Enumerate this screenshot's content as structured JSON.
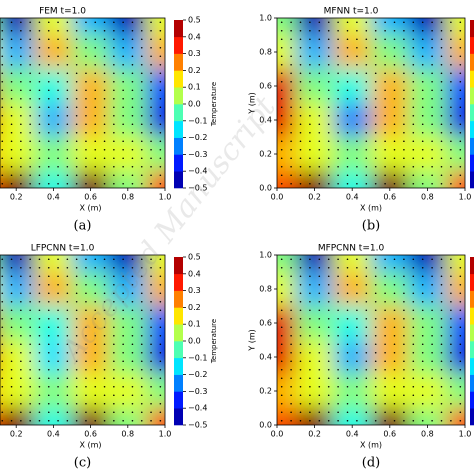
{
  "watermark": "Accepted Manuscript",
  "chart_data": [
    {
      "type": "contour",
      "title": "FEM   t=1.0",
      "caption": "(a)",
      "xlabel": "X (m)",
      "colorbar_label": "Temperature",
      "xlim": [
        0,
        1
      ],
      "ylim": [
        0,
        1
      ],
      "clim": [
        -0.5,
        0.5
      ],
      "colormap": "jet",
      "xticks": [
        0.2,
        0.4,
        0.6,
        0.8,
        {
          "value": 1,
          "label": "1.0"
        }
      ],
      "cbticks": [
        0.5,
        0.4,
        0.3,
        0.2,
        0.1,
        {
          "value": 0,
          "label": "0.0"
        },
        {
          "value": -0.1,
          "label": "−0.1"
        },
        {
          "value": -0.2,
          "label": "−0.2"
        },
        {
          "value": -0.3,
          "label": "−0.3"
        },
        {
          "value": -0.4,
          "label": "−0.4"
        },
        {
          "value": -0.5,
          "label": "−0.5"
        }
      ],
      "x": [
        0,
        0.2,
        0.4,
        0.6,
        0.8,
        1
      ],
      "y": [
        0,
        0.2,
        0.4,
        0.6,
        0.8,
        1
      ],
      "z": [
        [
          0.3,
          0.5,
          -0.1,
          0.5,
          0.0,
          0.3
        ],
        [
          0.2,
          0.1,
          0.0,
          0.1,
          0.1,
          0.0
        ],
        [
          0.4,
          0.1,
          -0.2,
          0.2,
          0.0,
          -0.4
        ],
        [
          0.4,
          0.0,
          -0.1,
          0.2,
          0.0,
          -0.3
        ],
        [
          0.1,
          -0.2,
          0.2,
          0.0,
          -0.2,
          0.2
        ],
        [
          0.0,
          -0.45,
          0.1,
          -0.2,
          -0.45,
          0.1
        ]
      ]
    },
    {
      "type": "contour",
      "title": "MFNN   t=1.0",
      "caption": "(b)",
      "xlabel": "X (m)",
      "ylabel": "Y (m)",
      "xlim": [
        0,
        1
      ],
      "ylim": [
        0,
        1
      ],
      "clim": [
        -0.5,
        0.5
      ],
      "colormap": "jet",
      "xticks": [
        {
          "value": 0,
          "label": "0.0"
        },
        0.2,
        0.4,
        0.6,
        0.8,
        {
          "value": 1,
          "label": "1.0"
        }
      ],
      "yticks": [
        {
          "value": 0,
          "label": "0.0"
        },
        0.2,
        0.4,
        0.6,
        0.8,
        {
          "value": 1,
          "label": "1.0"
        }
      ],
      "x": [
        0,
        0.2,
        0.4,
        0.6,
        0.8,
        1
      ],
      "y": [
        0,
        0.2,
        0.4,
        0.6,
        0.8,
        1
      ],
      "z": [
        [
          0.3,
          0.5,
          -0.1,
          0.5,
          0.0,
          0.3
        ],
        [
          0.2,
          0.1,
          0.0,
          0.1,
          0.1,
          0.0
        ],
        [
          0.4,
          0.1,
          -0.25,
          0.2,
          0.0,
          -0.4
        ],
        [
          0.4,
          0.0,
          -0.1,
          0.2,
          0.0,
          -0.3
        ],
        [
          0.1,
          -0.2,
          0.2,
          0.0,
          -0.2,
          0.2
        ],
        [
          0.0,
          -0.45,
          0.1,
          -0.2,
          -0.45,
          0.1
        ]
      ]
    },
    {
      "type": "contour",
      "title": "LFPCNN   t=1.0",
      "caption": "(c)",
      "xlabel": "X (m)",
      "colorbar_label": "Temperature",
      "xlim": [
        0,
        1
      ],
      "ylim": [
        0,
        1
      ],
      "clim": [
        -0.5,
        0.5
      ],
      "colormap": "jet",
      "xticks": [
        0.2,
        0.4,
        0.6,
        0.8,
        {
          "value": 1,
          "label": "1.0"
        }
      ],
      "cbticks": [
        0.5,
        0.4,
        0.3,
        0.2,
        0.1,
        {
          "value": 0,
          "label": "0.0"
        },
        {
          "value": -0.1,
          "label": "−0.1"
        },
        {
          "value": -0.2,
          "label": "−0.2"
        },
        {
          "value": -0.3,
          "label": "−0.3"
        },
        {
          "value": -0.4,
          "label": "−0.4"
        },
        {
          "value": -0.5,
          "label": "−0.5"
        }
      ],
      "x": [
        0,
        0.2,
        0.4,
        0.6,
        0.8,
        1
      ],
      "y": [
        0,
        0.2,
        0.4,
        0.6,
        0.8,
        1
      ],
      "z": [
        [
          0.3,
          0.5,
          -0.1,
          0.5,
          0.0,
          0.3
        ],
        [
          0.2,
          0.1,
          0.0,
          0.1,
          0.1,
          0.0
        ],
        [
          0.4,
          0.1,
          -0.15,
          0.2,
          0.0,
          -0.4
        ],
        [
          0.4,
          0.0,
          -0.1,
          0.2,
          0.0,
          -0.3
        ],
        [
          0.1,
          -0.2,
          0.2,
          0.0,
          -0.2,
          0.2
        ],
        [
          0.0,
          -0.45,
          0.1,
          -0.2,
          -0.45,
          0.1
        ]
      ]
    },
    {
      "type": "contour",
      "title": "MFPCNN   t=1.0",
      "caption": "(d)",
      "xlabel": "X (m)",
      "ylabel": "Y (m)",
      "xlim": [
        0,
        1
      ],
      "ylim": [
        0,
        1
      ],
      "clim": [
        -0.5,
        0.5
      ],
      "colormap": "jet",
      "xticks": [
        {
          "value": 0,
          "label": "0.0"
        },
        0.2,
        0.4,
        0.6,
        0.8,
        {
          "value": 1,
          "label": "1.0"
        }
      ],
      "yticks": [
        {
          "value": 0,
          "label": "0.0"
        },
        0.2,
        0.4,
        0.6,
        0.8,
        {
          "value": 1,
          "label": "1.0"
        }
      ],
      "x": [
        0,
        0.2,
        0.4,
        0.6,
        0.8,
        1
      ],
      "y": [
        0,
        0.2,
        0.4,
        0.6,
        0.8,
        1
      ],
      "z": [
        [
          0.3,
          0.5,
          -0.1,
          0.5,
          0.0,
          0.3
        ],
        [
          0.2,
          0.1,
          0.0,
          0.1,
          0.1,
          0.0
        ],
        [
          0.4,
          0.1,
          -0.2,
          0.2,
          0.0,
          -0.4
        ],
        [
          0.4,
          0.0,
          -0.1,
          0.2,
          0.0,
          -0.3
        ],
        [
          0.1,
          -0.2,
          0.2,
          0.0,
          -0.2,
          0.2
        ],
        [
          0.0,
          -0.45,
          0.1,
          -0.2,
          -0.45,
          0.1
        ]
      ]
    }
  ]
}
